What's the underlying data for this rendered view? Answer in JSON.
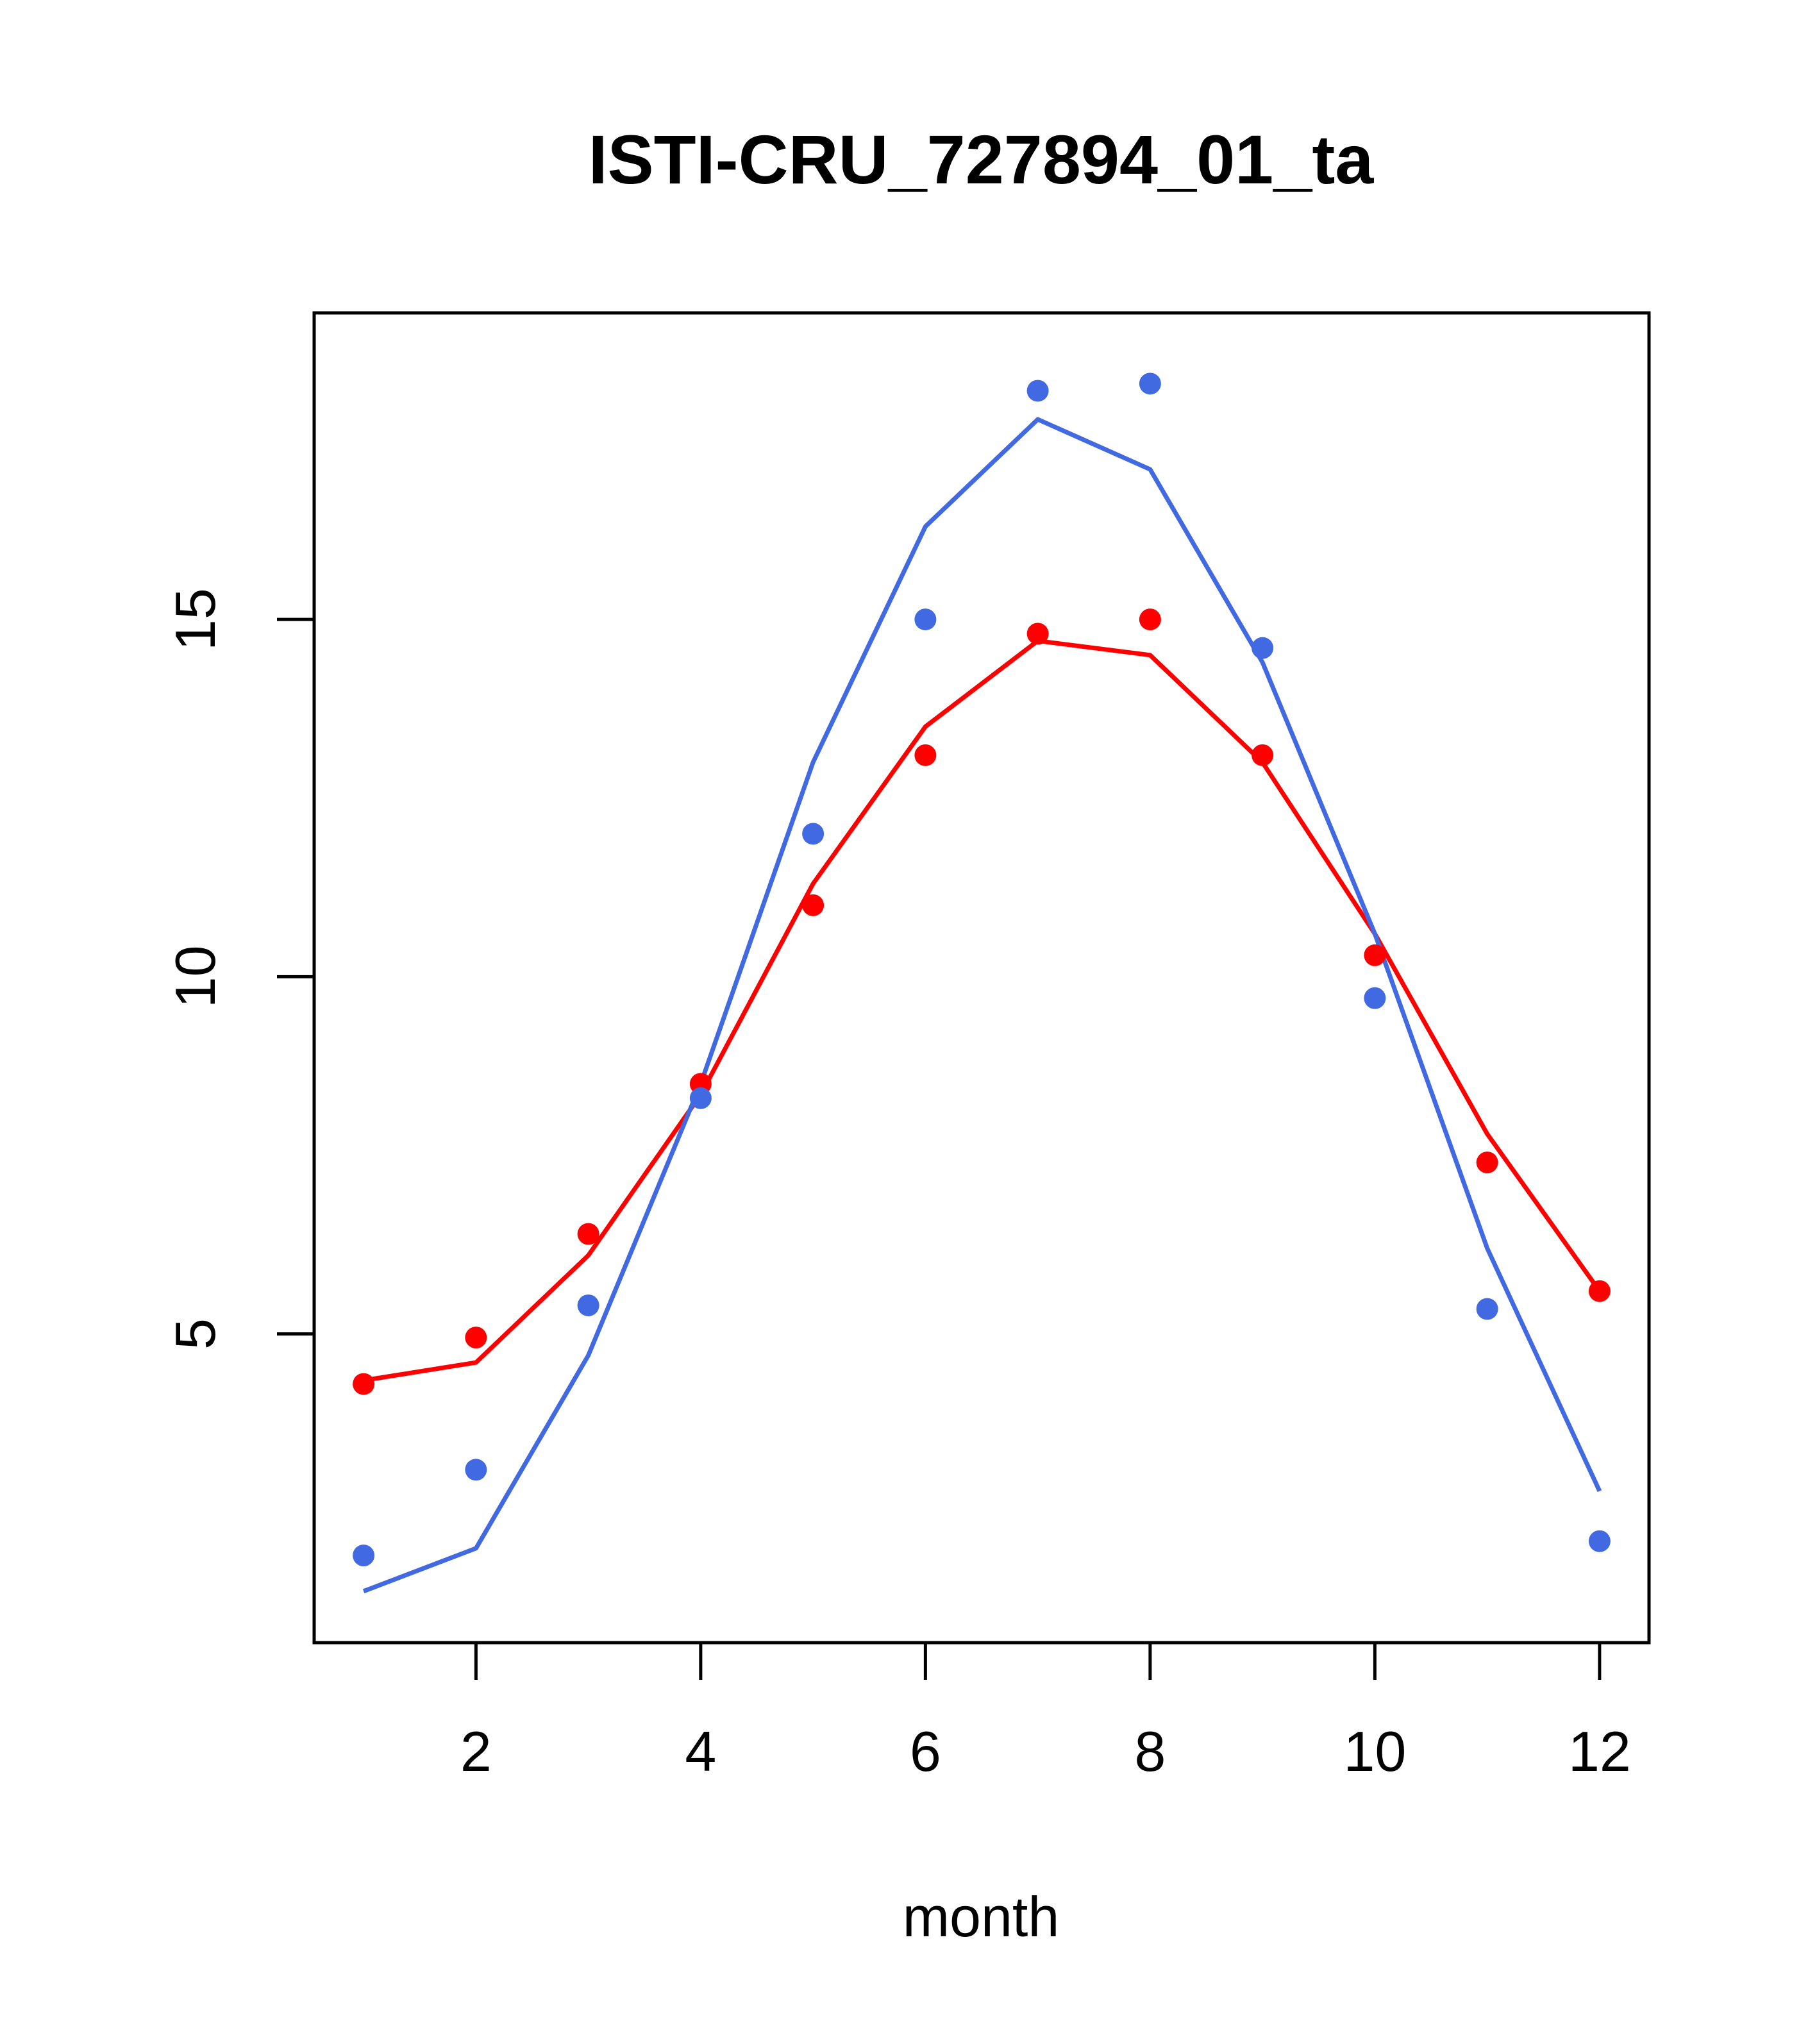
{
  "chart_data": {
    "type": "line",
    "title": "ISTI-CRU_727894_01_ta",
    "xlabel": "month",
    "ylabel": "",
    "xlim": [
      0.56,
      12.44
    ],
    "ylim": [
      0.68,
      19.29
    ],
    "xticks": [
      2,
      4,
      6,
      8,
      10,
      12
    ],
    "yticks": [
      5,
      10,
      15
    ],
    "grid": false,
    "legend": "none",
    "series": [
      {
        "color": "#ff0000",
        "kind": "points",
        "x": [
          1,
          2,
          3,
          4,
          5,
          6,
          7,
          8,
          9,
          10,
          11,
          12
        ],
        "y": [
          4.3,
          4.95,
          6.4,
          8.5,
          11.0,
          13.1,
          14.8,
          15.0,
          13.1,
          10.3,
          7.4,
          5.6
        ]
      },
      {
        "color": "#ff0000",
        "kind": "line",
        "x": [
          1,
          2,
          3,
          4,
          5,
          6,
          7,
          8,
          9,
          10,
          11,
          12
        ],
        "y": [
          4.35,
          4.6,
          6.1,
          8.35,
          11.3,
          13.5,
          14.7,
          14.5,
          13.0,
          10.6,
          7.8,
          5.6
        ]
      },
      {
        "color": "#4169e1",
        "kind": "points",
        "x": [
          1,
          2,
          3,
          4,
          5,
          6,
          7,
          8,
          9,
          10,
          11,
          12
        ],
        "y": [
          1.9,
          3.1,
          5.4,
          8.3,
          12.0,
          15.0,
          18.2,
          18.3,
          14.6,
          9.7,
          5.35,
          2.1
        ]
      },
      {
        "color": "#4169e1",
        "kind": "line",
        "x": [
          1,
          2,
          3,
          4,
          5,
          6,
          7,
          8,
          9,
          10,
          11,
          12
        ],
        "y": [
          1.4,
          2.0,
          4.7,
          8.5,
          13.0,
          16.3,
          17.8,
          17.1,
          14.4,
          10.6,
          6.2,
          2.8
        ]
      }
    ]
  }
}
